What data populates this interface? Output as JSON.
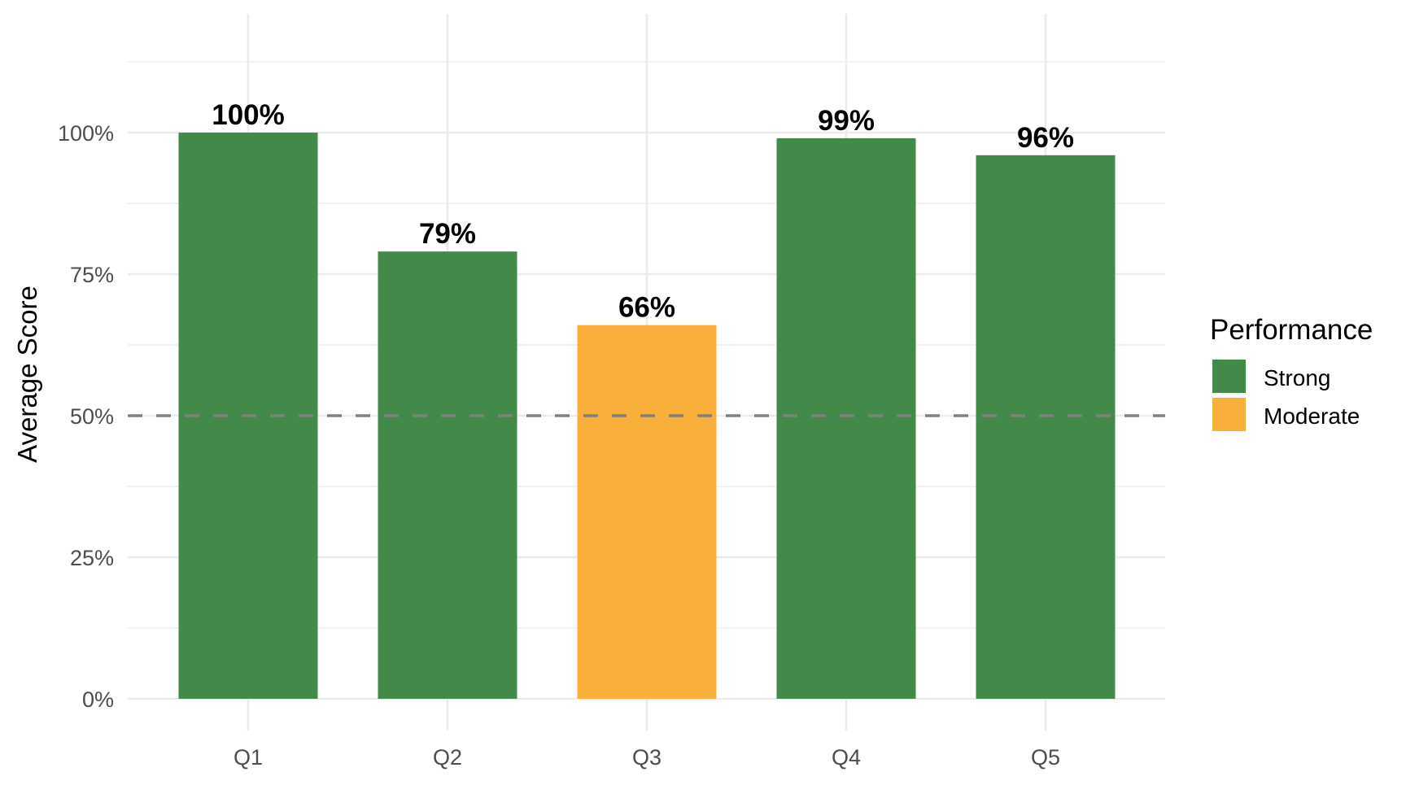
{
  "chart_data": {
    "type": "bar",
    "title": "",
    "xlabel": "",
    "ylabel": "Average Score",
    "categories": [
      "Q1",
      "Q2",
      "Q3",
      "Q4",
      "Q5"
    ],
    "values": [
      100,
      79,
      66,
      99,
      96
    ],
    "value_labels": [
      "100%",
      "79%",
      "66%",
      "99%",
      "96%"
    ],
    "performance": [
      "Strong",
      "Strong",
      "Moderate",
      "Strong",
      "Strong"
    ],
    "ylim": [
      0,
      121
    ],
    "yticks": [
      0,
      25,
      50,
      75,
      100
    ],
    "ytick_labels": [
      "0%",
      "25%",
      "50%",
      "75%",
      "100%"
    ],
    "reference_line": {
      "value": 50,
      "style": "dashed",
      "color": "#808080"
    },
    "grid": true,
    "legend": {
      "title": "Performance",
      "position": "right",
      "items": [
        {
          "label": "Strong",
          "color": "#43894A"
        },
        {
          "label": "Moderate",
          "color": "#F8B03A"
        }
      ]
    }
  }
}
